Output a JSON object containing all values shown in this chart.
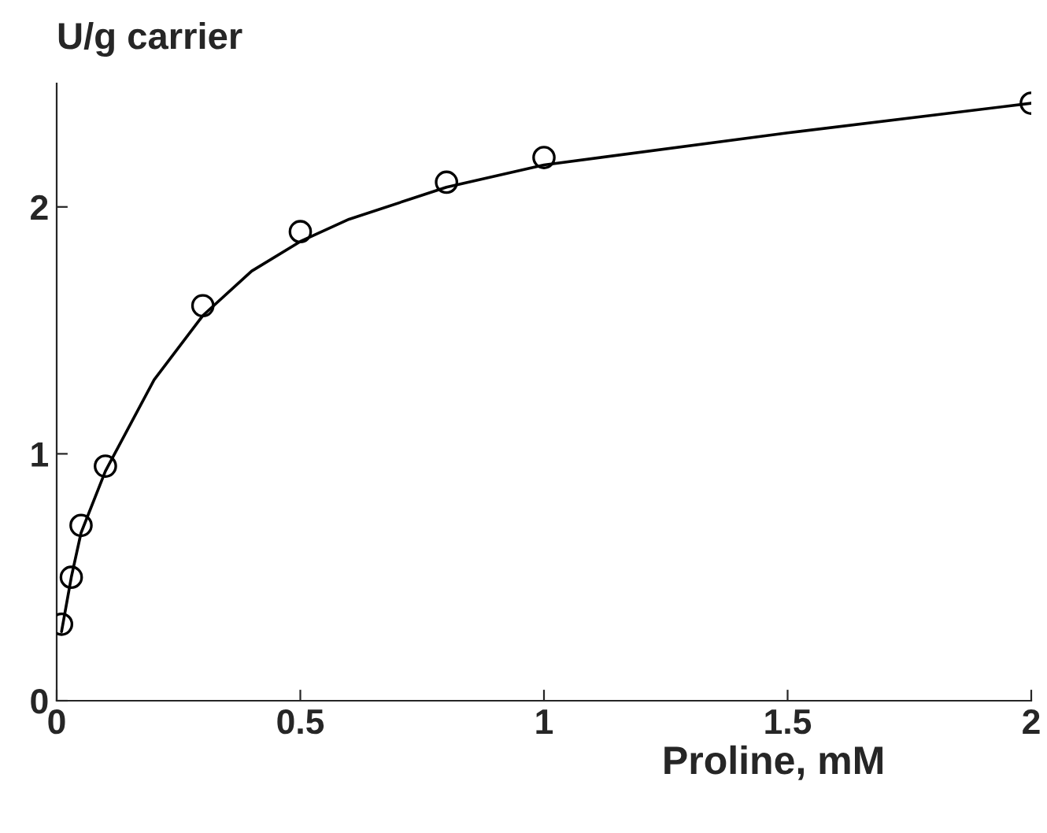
{
  "chart_data": {
    "type": "scatter",
    "ylabel": "U/g carrier",
    "xlabel": "Proline, mM",
    "xlim": [
      0,
      2
    ],
    "xticks": [
      0,
      0.5,
      1,
      1.5,
      2
    ],
    "ylim": [
      0,
      2.5
    ],
    "yticks": [
      0,
      1,
      2
    ],
    "grid": false,
    "series": [
      {
        "marker": "circle",
        "color": "#000000",
        "x": [
          0.01,
          0.03,
          0.05,
          0.1,
          0.3,
          0.5,
          0.8,
          1,
          2
        ],
        "values": [
          0.31,
          0.5,
          0.71,
          0.95,
          1.6,
          1.9,
          2.1,
          2.2,
          2.42
        ]
      },
      {
        "type": "line",
        "marker": "none",
        "color": "#000000",
        "x": [
          0.01,
          0.03,
          0.05,
          0.1,
          0.2,
          0.3,
          0.4,
          0.5,
          0.6,
          0.8,
          1,
          1.5,
          2
        ],
        "values": [
          0.28,
          0.5,
          0.68,
          0.93,
          1.3,
          1.56,
          1.74,
          1.86,
          1.95,
          2.08,
          2.17,
          2.3,
          2.42
        ]
      }
    ]
  }
}
